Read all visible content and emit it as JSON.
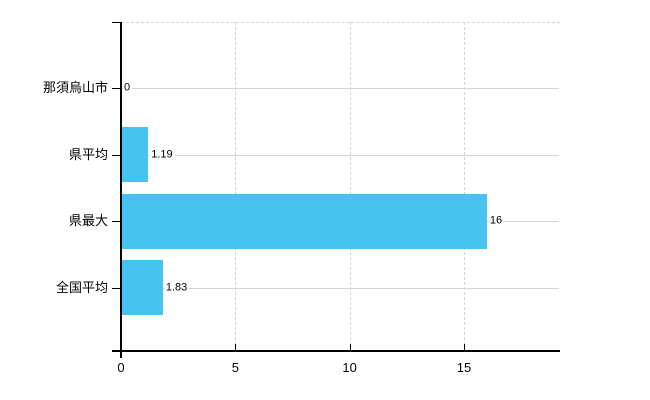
{
  "chart_data": {
    "type": "bar",
    "orientation": "horizontal",
    "title": "",
    "xlabel": "",
    "ylabel": "",
    "categories": [
      "那須烏山市",
      "県平均",
      "県最大",
      "全国平均"
    ],
    "values": [
      0,
      1.19,
      16,
      1.83
    ],
    "value_labels": [
      "0",
      "1.19",
      "16",
      "1.83"
    ],
    "x_ticks": [
      0,
      5,
      10,
      15
    ],
    "x_tick_labels": [
      "0",
      "5",
      "10",
      "15"
    ],
    "xlim": [
      0,
      19.2
    ],
    "grid": true,
    "legend": "none",
    "bar_color": "#48c3f1",
    "grid_color": "#d4d4d4",
    "axis_color": "#000000",
    "text_color": "#000000",
    "background_color": "#ffffff"
  }
}
